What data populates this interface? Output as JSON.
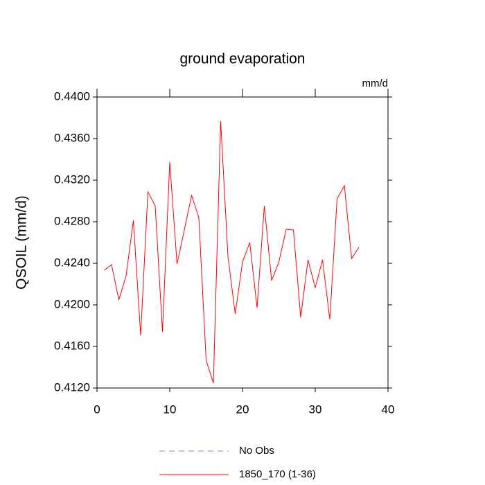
{
  "chart_data": {
    "type": "line",
    "title": "ground evaporation",
    "subtitle": "mm/d",
    "ylabel": "QSOIL  (mm/d)",
    "x": [
      1,
      2,
      3,
      4,
      5,
      6,
      7,
      8,
      9,
      10,
      11,
      12,
      13,
      14,
      15,
      16,
      17,
      18,
      19,
      20,
      21,
      22,
      23,
      24,
      25,
      26,
      27,
      28,
      29,
      30,
      31,
      32,
      33,
      34,
      35,
      36
    ],
    "series": [
      {
        "name": "No Obs",
        "color": "#7f7fff",
        "dash": true
      },
      {
        "name": "1850_170 (1-36)",
        "color": "#ff0000",
        "values": [
          0.42333,
          0.42387,
          0.42047,
          0.4228,
          0.42813,
          0.41707,
          0.43087,
          0.42953,
          0.4174,
          0.43373,
          0.42393,
          0.4272,
          0.43053,
          0.4284,
          0.41467,
          0.41247,
          0.43767,
          0.42467,
          0.41913,
          0.42413,
          0.426,
          0.41973,
          0.42953,
          0.42233,
          0.42413,
          0.42727,
          0.4272,
          0.4188,
          0.42433,
          0.42167,
          0.42433,
          0.4186,
          0.4302,
          0.43147,
          0.42447,
          0.42553
        ]
      }
    ],
    "xlim": [
      0,
      40
    ],
    "xticks": [
      0,
      10,
      20,
      30,
      40
    ],
    "ylim": [
      0.412,
      0.44
    ],
    "yticks": [
      {
        "value": 0.412,
        "label": "0.4120"
      },
      {
        "value": 0.416,
        "label": "0.4160"
      },
      {
        "value": 0.42,
        "label": "0.4200"
      },
      {
        "value": 0.424,
        "label": "0.4240"
      },
      {
        "value": 0.428,
        "label": "0.4280"
      },
      {
        "value": 0.432,
        "label": "0.4320"
      },
      {
        "value": 0.436,
        "label": "0.4360"
      },
      {
        "value": 0.44,
        "label": "0.4400"
      }
    ]
  }
}
